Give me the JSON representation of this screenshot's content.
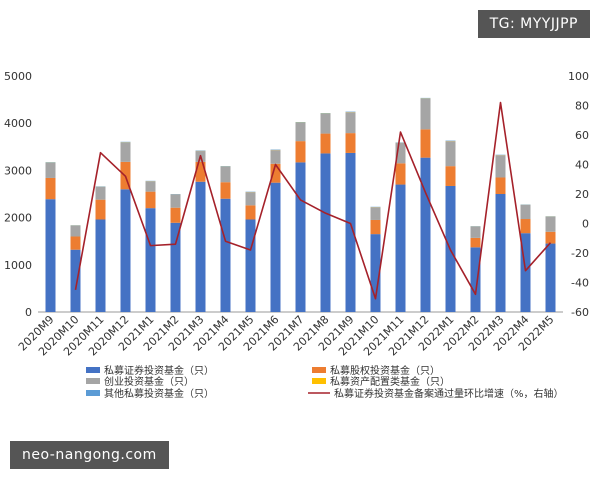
{
  "watermarks": {
    "top_right": "TG: MYYJJPP",
    "bottom_left": "neo-nangong.com"
  },
  "legend": [
    {
      "label": "私募证券投资基金（只）",
      "kind": "bar",
      "color": "#4472C4"
    },
    {
      "label": "私募股权投资基金（只）",
      "kind": "bar",
      "color": "#ED7D31"
    },
    {
      "label": "创业投资基金（只）",
      "kind": "bar",
      "color": "#A5A5A5"
    },
    {
      "label": "私募资产配置类基金（只）",
      "kind": "bar",
      "color": "#FFC000"
    },
    {
      "label": "其他私募投资基金（只）",
      "kind": "bar",
      "color": "#5B9BD5"
    },
    {
      "label": "私募证券投资基金备案通过量环比增速（%，右轴）",
      "kind": "line",
      "color": "#A5212A"
    }
  ],
  "chart_data": {
    "type": "bar",
    "stacked": true,
    "categories": [
      "2020M9",
      "2020M10",
      "2020M11",
      "2020M12",
      "2021M1",
      "2021M2",
      "2021M3",
      "2021M4",
      "2021M5",
      "2021M6",
      "2021M7",
      "2021M8",
      "2021M9",
      "2021M10",
      "2021M11",
      "2021M12",
      "2022M1",
      "2022M2",
      "2022M3",
      "2022M4",
      "2022M5"
    ],
    "ylim": [
      0,
      5000
    ],
    "yticks": [
      0,
      1000,
      2000,
      3000,
      4000,
      5000
    ],
    "y2lim": [
      -60,
      100
    ],
    "y2ticks": [
      -60,
      -40,
      -20,
      0,
      20,
      40,
      60,
      80,
      100
    ],
    "grid": false,
    "legend_position": "bottom",
    "series": [
      {
        "name": "私募证券投资基金（只）",
        "axis": "left",
        "color": "#4472C4",
        "values": [
          2390,
          1320,
          1960,
          2600,
          2200,
          1890,
          2760,
          2400,
          1960,
          2740,
          3170,
          3360,
          3370,
          1650,
          2700,
          3270,
          2670,
          1370,
          2500,
          1670,
          1450
        ]
      },
      {
        "name": "私募股权投资基金（只）",
        "axis": "left",
        "color": "#ED7D31",
        "values": [
          450,
          280,
          420,
          580,
          350,
          320,
          420,
          350,
          300,
          400,
          450,
          420,
          420,
          300,
          450,
          600,
          420,
          200,
          350,
          300,
          250
        ]
      },
      {
        "name": "创业投资基金（只）",
        "axis": "left",
        "color": "#A5A5A5",
        "values": [
          320,
          230,
          270,
          410,
          220,
          280,
          230,
          330,
          280,
          290,
          390,
          420,
          440,
          270,
          430,
          650,
          530,
          240,
          470,
          300,
          320
        ]
      },
      {
        "name": "私募资产配置类基金（只）",
        "axis": "left",
        "color": "#FFC000",
        "values": [
          5,
          3,
          4,
          6,
          3,
          3,
          5,
          4,
          3,
          5,
          5,
          5,
          5,
          3,
          5,
          6,
          4,
          3,
          4,
          3,
          3
        ]
      },
      {
        "name": "其他私募投资基金（只）",
        "axis": "left",
        "color": "#5B9BD5",
        "values": [
          10,
          6,
          8,
          10,
          6,
          6,
          8,
          8,
          6,
          8,
          10,
          10,
          10,
          6,
          8,
          10,
          8,
          6,
          8,
          6,
          6
        ]
      },
      {
        "name": "私募证券投资基金备案通过量环比增速（%，右轴）",
        "axis": "right",
        "type": "line",
        "color": "#A5212A",
        "values": [
          null,
          -45,
          48,
          32,
          -15,
          -14,
          46,
          -12,
          -18,
          40,
          16,
          7,
          0,
          -51,
          62,
          21,
          -18,
          -48,
          82,
          -32,
          -13
        ]
      }
    ]
  }
}
